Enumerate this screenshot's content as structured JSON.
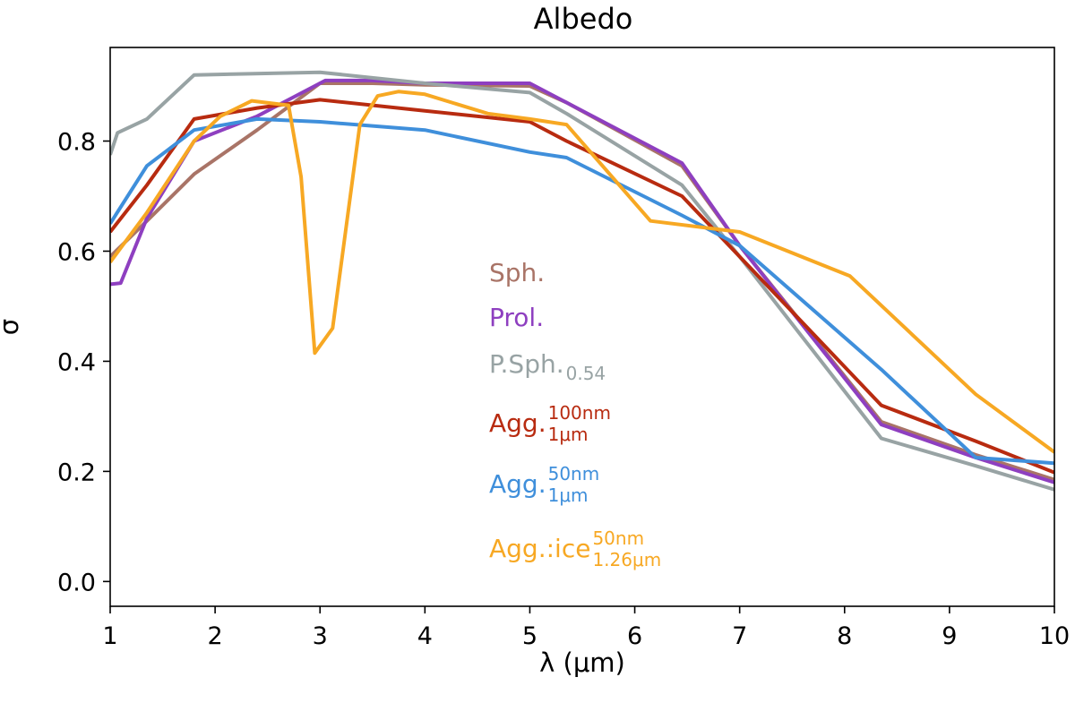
{
  "chart_data": {
    "type": "line",
    "title": "Albedo",
    "xlabel": "λ (μm)",
    "ylabel": "σ",
    "xlim": [
      1,
      10
    ],
    "ylim": [
      -0.045,
      0.97
    ],
    "xticks": [
      1,
      2,
      3,
      4,
      5,
      6,
      7,
      8,
      9,
      10
    ],
    "yticks": [
      0.0,
      0.2,
      0.4,
      0.6,
      0.8
    ],
    "ytick_labels": [
      "0.0",
      "0.2",
      "0.4",
      "0.6",
      "0.8"
    ],
    "series": [
      {
        "name": "Sph.",
        "color": "#a97467",
        "x": [
          1.0,
          1.35,
          1.8,
          2.4,
          3.0,
          3.5,
          4.0,
          5.0,
          5.35,
          6.45,
          7.0,
          8.35,
          9.25,
          10.0
        ],
        "y": [
          0.59,
          0.655,
          0.74,
          0.82,
          0.905,
          0.905,
          0.902,
          0.9,
          0.87,
          0.755,
          0.61,
          0.29,
          0.23,
          0.185
        ]
      },
      {
        "name": "Prol.",
        "color": "#8e3fc0",
        "x": [
          1.0,
          1.1,
          1.35,
          1.8,
          2.4,
          3.05,
          3.5,
          4.0,
          5.0,
          5.35,
          6.45,
          7.0,
          8.35,
          9.25,
          10.0
        ],
        "y": [
          0.54,
          0.542,
          0.66,
          0.8,
          0.845,
          0.91,
          0.91,
          0.905,
          0.905,
          0.87,
          0.76,
          0.61,
          0.285,
          0.225,
          0.18
        ]
      },
      {
        "name": "P.Sph.",
        "sub": "0.54",
        "color": "#98a3a4",
        "x": [
          1.0,
          1.07,
          1.35,
          1.8,
          3.0,
          4.0,
          5.0,
          5.35,
          6.45,
          7.0,
          8.35,
          9.25,
          10.0
        ],
        "y": [
          0.775,
          0.815,
          0.84,
          0.92,
          0.925,
          0.905,
          0.888,
          0.85,
          0.72,
          0.59,
          0.26,
          0.21,
          0.167
        ]
      },
      {
        "name": "Agg.",
        "sup": "100nm",
        "sub": "1μm",
        "color": "#b82b10",
        "x": [
          1.0,
          1.35,
          1.8,
          2.4,
          3.0,
          4.0,
          5.0,
          5.35,
          6.45,
          7.0,
          8.35,
          9.25,
          10.0
        ],
        "y": [
          0.635,
          0.72,
          0.84,
          0.86,
          0.875,
          0.855,
          0.835,
          0.8,
          0.7,
          0.59,
          0.32,
          0.255,
          0.198
        ]
      },
      {
        "name": "Agg.",
        "sup": "50nm",
        "sub": "1μm",
        "color": "#3f8fdb",
        "x": [
          1.0,
          1.35,
          1.8,
          2.4,
          3.0,
          4.0,
          5.0,
          5.35,
          6.45,
          7.0,
          8.35,
          9.25,
          10.0
        ],
        "y": [
          0.65,
          0.755,
          0.82,
          0.84,
          0.835,
          0.82,
          0.78,
          0.77,
          0.665,
          0.61,
          0.385,
          0.225,
          0.215
        ]
      },
      {
        "name": "Agg.:ice",
        "sup": "50nm",
        "sub": "1.26μm",
        "color": "#f7a823",
        "x": [
          1.0,
          1.35,
          1.8,
          2.05,
          2.35,
          2.7,
          2.82,
          2.95,
          3.12,
          3.38,
          3.55,
          3.75,
          4.0,
          4.6,
          5.0,
          5.35,
          6.15,
          7.0,
          8.05,
          9.25,
          10.0
        ],
        "y": [
          0.58,
          0.67,
          0.8,
          0.845,
          0.873,
          0.865,
          0.735,
          0.415,
          0.46,
          0.83,
          0.882,
          0.89,
          0.885,
          0.85,
          0.84,
          0.83,
          0.655,
          0.635,
          0.555,
          0.34,
          0.235
        ]
      }
    ]
  }
}
